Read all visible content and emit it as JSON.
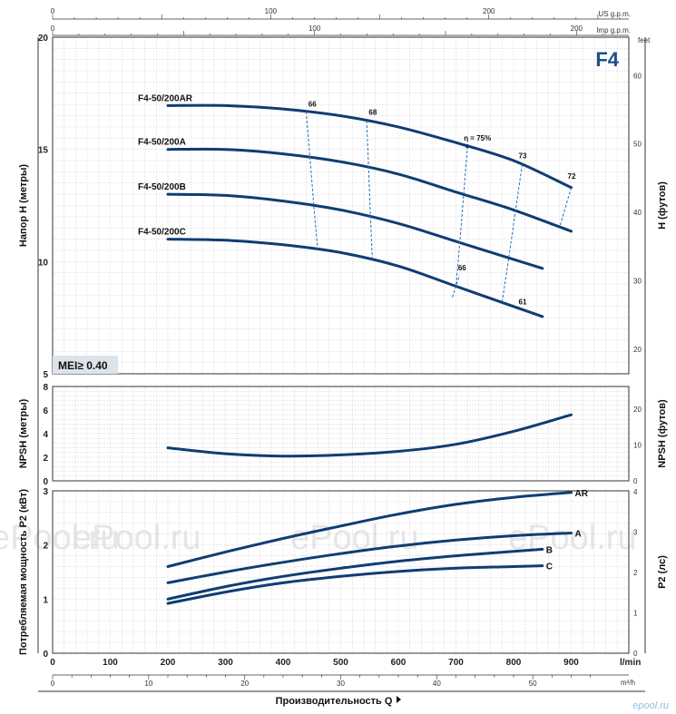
{
  "chart_data": [
    {
      "type": "line",
      "title": "F4",
      "ylabel": "Напор H (метры)",
      "ylabel_right": "H (футов)",
      "ylim": [
        5,
        20
      ],
      "yticks": [
        "5",
        "10",
        "15",
        "20"
      ],
      "yticks_right": [
        "20",
        "30",
        "40",
        "50",
        "60"
      ],
      "right_unit": "feet",
      "badge": "MEI≥ 0.40",
      "x": [
        200,
        300,
        400,
        500,
        600,
        700,
        800,
        900
      ],
      "series": [
        {
          "name": "F4-50/200AR",
          "values": [
            16.95,
            16.95,
            16.8,
            16.5,
            16.0,
            15.3,
            14.5,
            13.3
          ]
        },
        {
          "name": "F4-50/200A",
          "values": [
            15.0,
            15.0,
            14.8,
            14.45,
            13.9,
            13.1,
            12.3,
            11.35
          ]
        },
        {
          "name": "F4-50/200B",
          "values": [
            13.0,
            12.95,
            12.7,
            12.3,
            11.7,
            10.9,
            10.1,
            null
          ]
        },
        {
          "name": "F4-50/200C",
          "values": [
            11.0,
            10.95,
            10.75,
            10.4,
            9.8,
            8.9,
            8.0,
            null
          ]
        }
      ],
      "series_end_x": [
        900,
        900,
        850,
        850
      ],
      "efficiency_labels": [
        "66",
        "68",
        "η = 75%",
        "73",
        "72",
        "66",
        "61"
      ]
    },
    {
      "type": "line",
      "ylabel": "NPSH (метры)",
      "ylabel_right": "NPSH (футов)",
      "ylim": [
        0,
        8
      ],
      "yticks": [
        "0",
        "2",
        "4",
        "6",
        "8"
      ],
      "yticks_right": [
        "0",
        "10",
        "20"
      ],
      "x": [
        200,
        300,
        400,
        500,
        600,
        700,
        800,
        900
      ],
      "series": [
        {
          "values": [
            2.8,
            2.3,
            2.1,
            2.2,
            2.5,
            3.1,
            4.2,
            5.6
          ]
        }
      ]
    },
    {
      "type": "line",
      "ylabel": "Потребляемая мощность P2 (кВт)",
      "ylabel_right": "P2 (лс)",
      "ylim": [
        0,
        3
      ],
      "yticks": [
        "0",
        "1",
        "2",
        "3"
      ],
      "yticks_right": [
        "0",
        "1",
        "2",
        "3",
        "4"
      ],
      "x": [
        200,
        300,
        400,
        500,
        600,
        700,
        800,
        900
      ],
      "series": [
        {
          "name": "AR",
          "values": [
            1.6,
            1.87,
            2.12,
            2.35,
            2.57,
            2.75,
            2.88,
            2.97
          ]
        },
        {
          "name": "A",
          "values": [
            1.3,
            1.5,
            1.68,
            1.84,
            1.98,
            2.09,
            2.17,
            2.22
          ]
        },
        {
          "name": "B",
          "values": [
            1.0,
            1.23,
            1.42,
            1.57,
            1.7,
            1.8,
            1.88,
            null
          ]
        },
        {
          "name": "C",
          "values": [
            0.92,
            1.13,
            1.3,
            1.42,
            1.51,
            1.57,
            1.6,
            null
          ]
        }
      ],
      "series_end_x": [
        900,
        900,
        850,
        850
      ]
    }
  ],
  "axes": {
    "xlabel": "Производительность Q",
    "x_unit_main": "l/min",
    "x_ticks_main": [
      "0",
      "100",
      "200",
      "300",
      "400",
      "500",
      "600",
      "700",
      "800",
      "900"
    ],
    "x_unit_m3h": "m³/h",
    "x_ticks_m3h": [
      "0",
      "10",
      "20",
      "30",
      "40",
      "50"
    ],
    "x_unit_usgpm": "US g.p.m.",
    "x_ticks_usgpm": [
      "0",
      "100",
      "200"
    ],
    "x_unit_impgpm": "Imp g.p.m.",
    "x_ticks_impgpm": [
      "0",
      "100",
      "200"
    ]
  },
  "watermark": "ePool.ru",
  "logo_text": "epool.ru",
  "colors": {
    "curve": "#0f3d73",
    "grid": "#c9c9c9",
    "badge_bg": "#dde3ea",
    "eff": "#2a6db5"
  }
}
